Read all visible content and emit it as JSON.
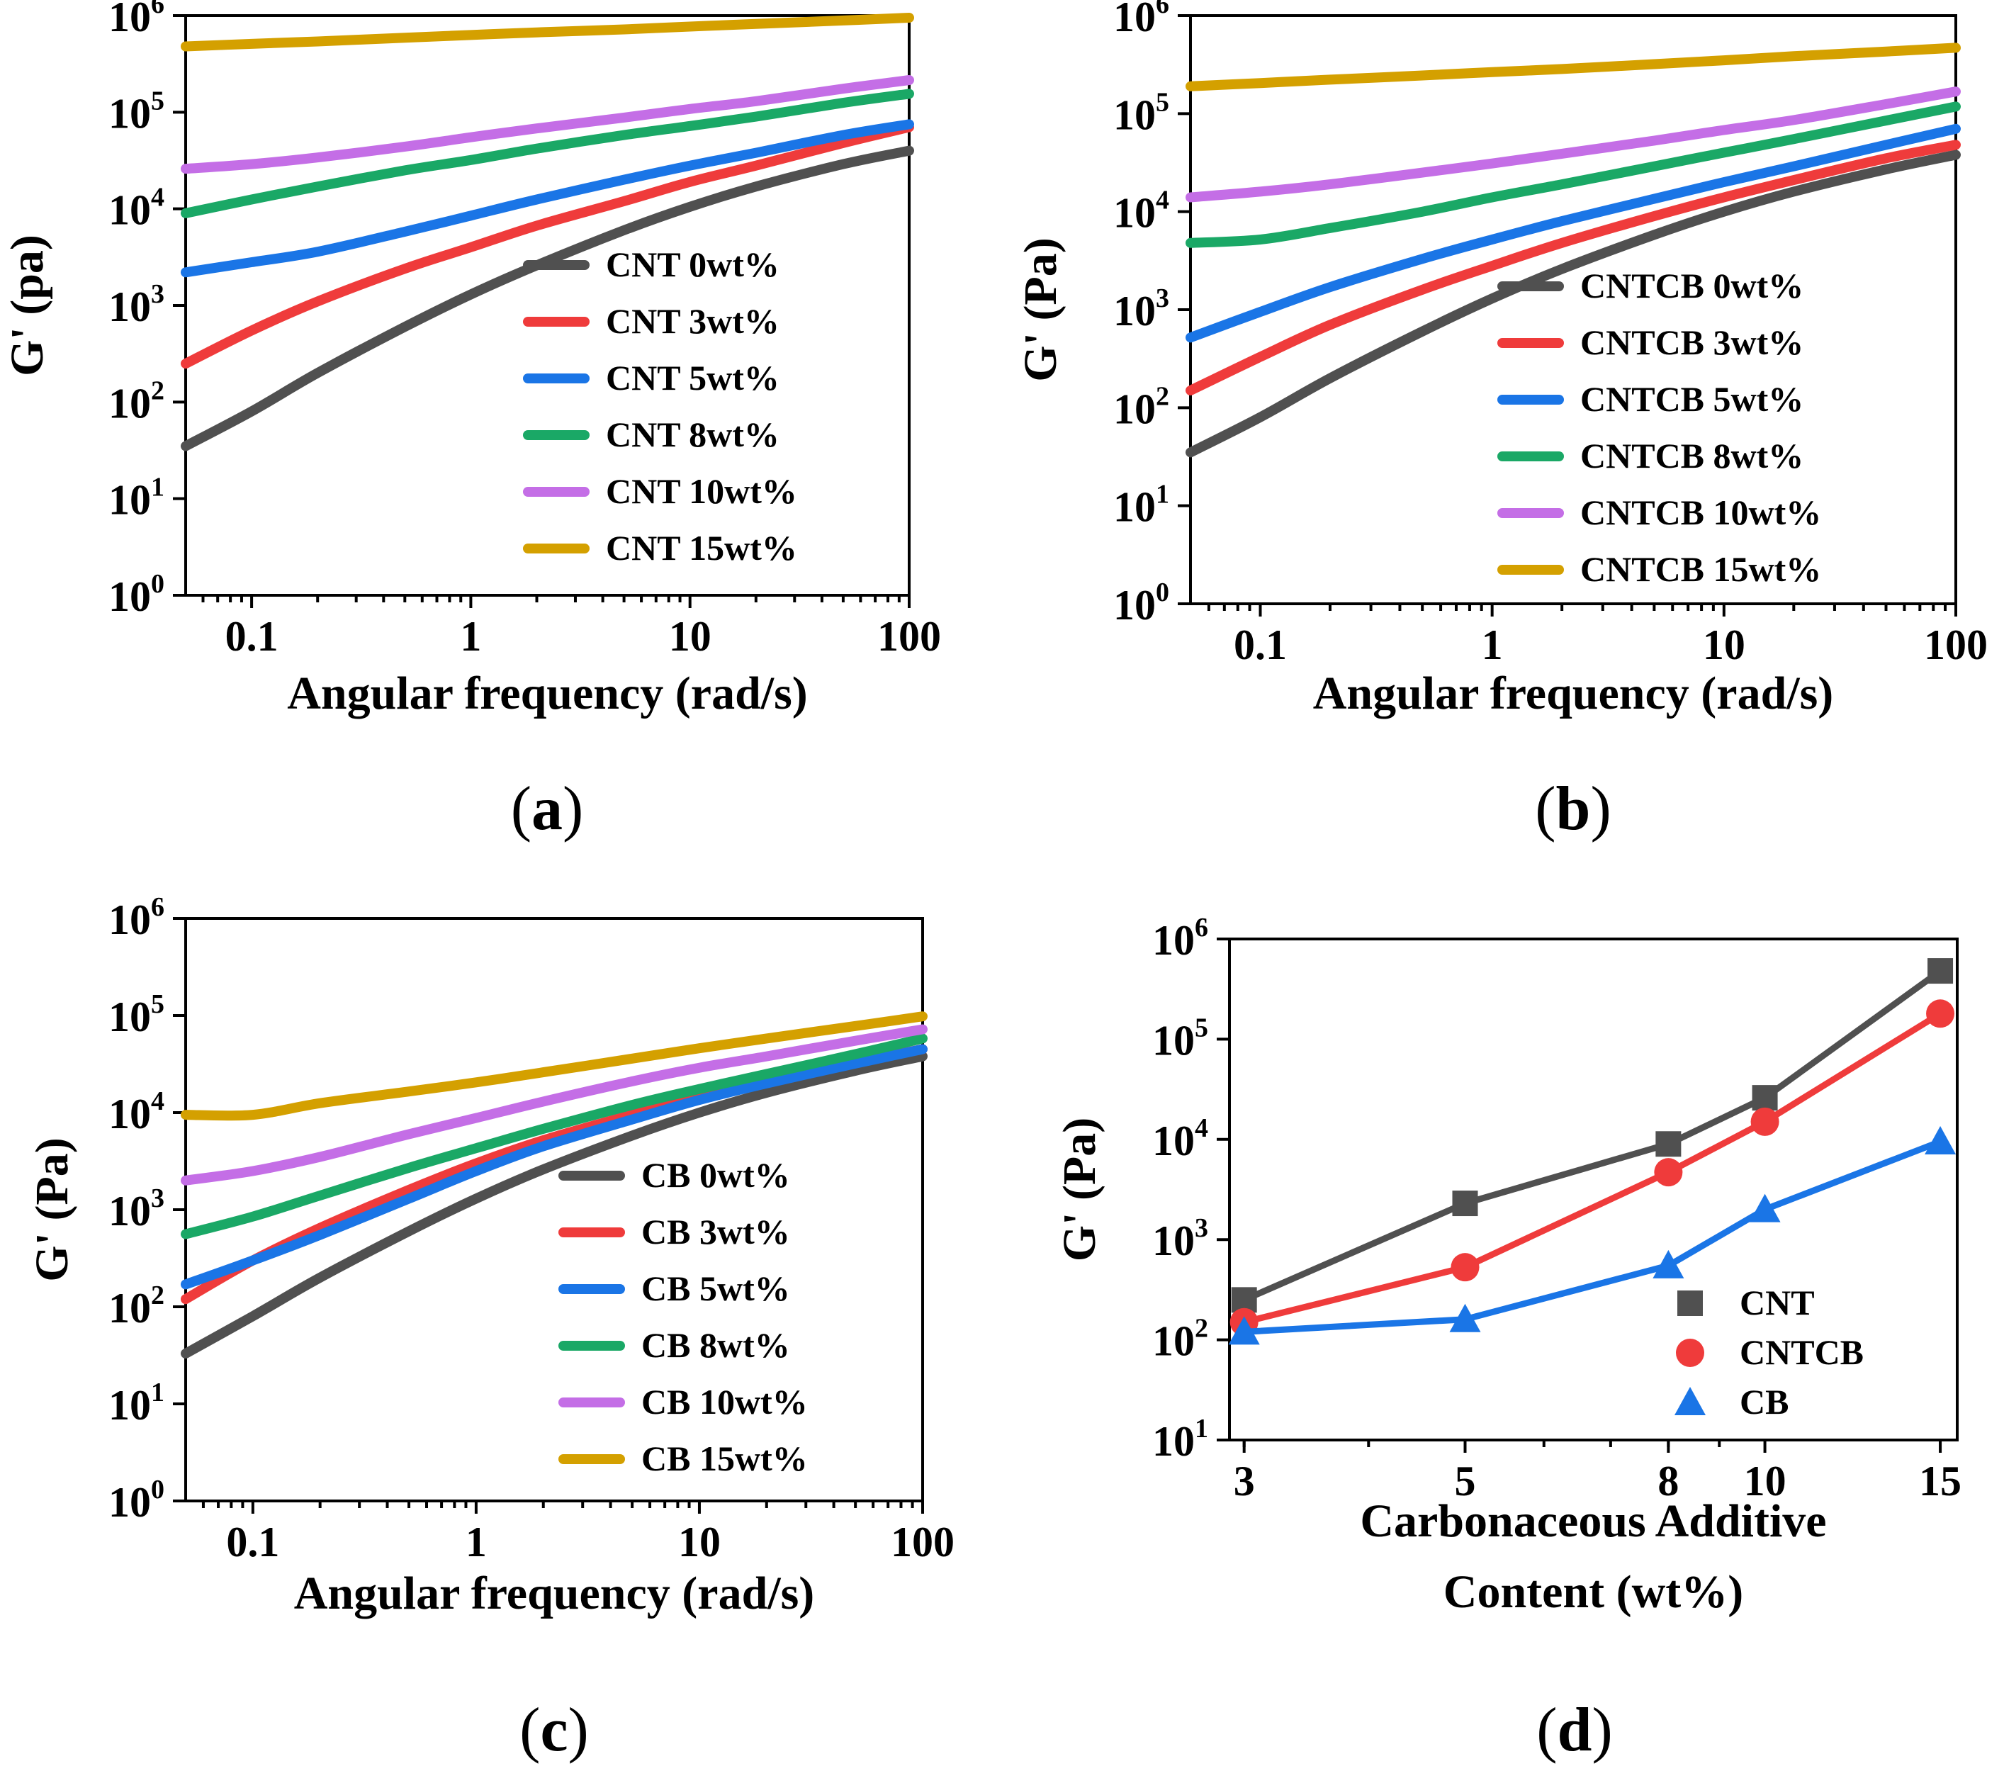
{
  "colors": {
    "0wt": "#505050",
    "3wt": "#ef3b3b",
    "5wt": "#1a75e6",
    "8wt": "#1aa866",
    "10wt": "#c46ee6",
    "15wt": "#d4a000",
    "CNT": "#505050",
    "CNTCB": "#ef3b3b",
    "CB": "#1a75e6"
  },
  "chart_data": [
    {
      "id": "a",
      "panel_label": "a",
      "type": "line",
      "xscale": "log",
      "yscale": "log",
      "xlim": [
        0.05,
        100
      ],
      "ylim": [
        1,
        1000000
      ],
      "xlabel": "Angular frequency (rad/s)",
      "ylabel": "G' (pa)",
      "x_ticks": [
        {
          "value": 0.1,
          "label": "0.1"
        },
        {
          "value": 1,
          "label": "1"
        },
        {
          "value": 10,
          "label": "10"
        },
        {
          "value": 100,
          "label": "100"
        }
      ],
      "y_ticks": [
        {
          "value": 1,
          "base": "10",
          "exp": "0"
        },
        {
          "value": 10,
          "base": "10",
          "exp": "1"
        },
        {
          "value": 100,
          "base": "10",
          "exp": "2"
        },
        {
          "value": 1000,
          "base": "10",
          "exp": "3"
        },
        {
          "value": 10000,
          "base": "10",
          "exp": "4"
        },
        {
          "value": 100000,
          "base": "10",
          "exp": "5"
        },
        {
          "value": 1000000,
          "base": "10",
          "exp": "6"
        }
      ],
      "legend_position": "lower-right",
      "series": [
        {
          "name": "CNT 0wt%",
          "color_key": "0wt",
          "x": [
            0.05,
            0.1,
            0.2,
            0.5,
            1,
            2,
            5,
            10,
            20,
            50,
            100
          ],
          "y": [
            35,
            80,
            200,
            600,
            1300,
            2600,
            6000,
            10500,
            17000,
            29000,
            40000
          ]
        },
        {
          "name": "CNT 3wt%",
          "color_key": "3wt",
          "x": [
            0.05,
            0.1,
            0.2,
            0.5,
            1,
            2,
            5,
            10,
            20,
            50,
            100
          ],
          "y": [
            250,
            550,
            1100,
            2400,
            4000,
            6700,
            12000,
            19000,
            28000,
            48000,
            70000
          ]
        },
        {
          "name": "CNT 5wt%",
          "color_key": "5wt",
          "x": [
            0.05,
            0.1,
            0.2,
            0.5,
            1,
            2,
            5,
            10,
            20,
            50,
            100
          ],
          "y": [
            2200,
            2800,
            3600,
            5800,
            8500,
            12500,
            20000,
            28000,
            38000,
            58000,
            75000
          ]
        },
        {
          "name": "CNT 8wt%",
          "color_key": "8wt",
          "x": [
            0.05,
            0.1,
            0.2,
            0.5,
            1,
            2,
            5,
            10,
            20,
            50,
            100
          ],
          "y": [
            9000,
            12500,
            17000,
            25000,
            32000,
            42000,
            58000,
            72000,
            90000,
            125000,
            155000
          ]
        },
        {
          "name": "CNT 10wt%",
          "color_key": "10wt",
          "x": [
            0.05,
            0.1,
            0.2,
            0.5,
            1,
            2,
            5,
            10,
            20,
            50,
            100
          ],
          "y": [
            26000,
            29000,
            34000,
            44000,
            55000,
            68000,
            88000,
            108000,
            130000,
            175000,
            215000
          ]
        },
        {
          "name": "CNT 15wt%",
          "color_key": "15wt",
          "x": [
            0.05,
            0.1,
            0.2,
            0.5,
            1,
            2,
            5,
            10,
            20,
            50,
            100
          ],
          "y": [
            480000,
            510000,
            540000,
            590000,
            630000,
            670000,
            720000,
            770000,
            820000,
            890000,
            950000
          ]
        }
      ]
    },
    {
      "id": "b",
      "panel_label": "b",
      "type": "line",
      "xscale": "log",
      "yscale": "log",
      "xlim": [
        0.05,
        100
      ],
      "ylim": [
        1,
        1000000
      ],
      "xlabel": "Angular frequency (rad/s)",
      "ylabel": "G' (Pa)",
      "x_ticks": [
        {
          "value": 0.1,
          "label": "0.1"
        },
        {
          "value": 1,
          "label": "1"
        },
        {
          "value": 10,
          "label": "10"
        },
        {
          "value": 100,
          "label": "100"
        }
      ],
      "y_ticks": [
        {
          "value": 1,
          "base": "10",
          "exp": "0"
        },
        {
          "value": 10,
          "base": "10",
          "exp": "1"
        },
        {
          "value": 100,
          "base": "10",
          "exp": "2"
        },
        {
          "value": 1000,
          "base": "10",
          "exp": "3"
        },
        {
          "value": 10000,
          "base": "10",
          "exp": "4"
        },
        {
          "value": 100000,
          "base": "10",
          "exp": "5"
        },
        {
          "value": 1000000,
          "base": "10",
          "exp": "6"
        }
      ],
      "legend_position": "lower-right",
      "series": [
        {
          "name": "CNTCB 0wt%",
          "color_key": "0wt",
          "x": [
            0.05,
            0.1,
            0.2,
            0.5,
            1,
            2,
            5,
            10,
            20,
            50,
            100
          ],
          "y": [
            35,
            80,
            200,
            600,
            1300,
            2600,
            5800,
            10000,
            16000,
            27000,
            38000
          ]
        },
        {
          "name": "CNTCB 3wt%",
          "color_key": "3wt",
          "x": [
            0.05,
            0.1,
            0.2,
            0.5,
            1,
            2,
            5,
            10,
            20,
            50,
            100
          ],
          "y": [
            150,
            330,
            700,
            1600,
            2800,
            4800,
            9000,
            14000,
            21000,
            35000,
            48000
          ]
        },
        {
          "name": "CNTCB 5wt%",
          "color_key": "5wt",
          "x": [
            0.05,
            0.1,
            0.2,
            0.5,
            1,
            2,
            5,
            10,
            20,
            50,
            100
          ],
          "y": [
            520,
            950,
            1700,
            3300,
            5200,
            8000,
            13500,
            20000,
            29000,
            48000,
            70000
          ]
        },
        {
          "name": "CNTCB 8wt%",
          "color_key": "8wt",
          "x": [
            0.05,
            0.1,
            0.2,
            0.5,
            1,
            2,
            5,
            10,
            20,
            50,
            100
          ],
          "y": [
            4800,
            5200,
            6800,
            10000,
            14000,
            19000,
            29000,
            40000,
            55000,
            85000,
            118000
          ]
        },
        {
          "name": "CNTCB 10wt%",
          "color_key": "10wt",
          "x": [
            0.05,
            0.1,
            0.2,
            0.5,
            1,
            2,
            5,
            10,
            20,
            50,
            100
          ],
          "y": [
            14000,
            16000,
            19000,
            25000,
            31000,
            39000,
            53000,
            68000,
            86000,
            125000,
            168000
          ]
        },
        {
          "name": "CNTCB 15wt%",
          "color_key": "15wt",
          "x": [
            0.05,
            0.1,
            0.2,
            0.5,
            1,
            2,
            5,
            10,
            20,
            50,
            100
          ],
          "y": [
            190000,
            205000,
            222000,
            245000,
            265000,
            285000,
            320000,
            350000,
            385000,
            430000,
            470000
          ]
        }
      ]
    },
    {
      "id": "c",
      "panel_label": "c",
      "type": "line",
      "xscale": "log",
      "yscale": "log",
      "xlim": [
        0.05,
        100
      ],
      "ylim": [
        1,
        1000000
      ],
      "xlabel": "Angular frequency (rad/s)",
      "ylabel": "G' (Pa)",
      "x_ticks": [
        {
          "value": 0.1,
          "label": "0.1"
        },
        {
          "value": 1,
          "label": "1"
        },
        {
          "value": 10,
          "label": "10"
        },
        {
          "value": 100,
          "label": "100"
        }
      ],
      "y_ticks": [
        {
          "value": 1,
          "base": "10",
          "exp": "0"
        },
        {
          "value": 10,
          "base": "10",
          "exp": "1"
        },
        {
          "value": 100,
          "base": "10",
          "exp": "2"
        },
        {
          "value": 1000,
          "base": "10",
          "exp": "3"
        },
        {
          "value": 10000,
          "base": "10",
          "exp": "4"
        },
        {
          "value": 100000,
          "base": "10",
          "exp": "5"
        },
        {
          "value": 1000000,
          "base": "10",
          "exp": "6"
        }
      ],
      "legend_position": "lower-right",
      "series": [
        {
          "name": "CB 0wt%",
          "color_key": "0wt",
          "x": [
            0.05,
            0.1,
            0.2,
            0.5,
            1,
            2,
            5,
            10,
            20,
            50,
            100
          ],
          "y": [
            33,
            80,
            200,
            600,
            1300,
            2600,
            5800,
            10000,
            16000,
            27000,
            38000
          ]
        },
        {
          "name": "CB 3wt%",
          "color_key": "3wt",
          "x": [
            0.05,
            0.1,
            0.2,
            0.5,
            1,
            2,
            5,
            10,
            20,
            50,
            100
          ],
          "y": [
            120,
            300,
            650,
            1600,
            3000,
            5200,
            9500,
            14500,
            21000,
            33000,
            45000
          ]
        },
        {
          "name": "CB 5wt%",
          "color_key": "5wt",
          "x": [
            0.05,
            0.1,
            0.2,
            0.5,
            1,
            2,
            5,
            10,
            20,
            50,
            100
          ],
          "y": [
            170,
            300,
            550,
            1300,
            2500,
            4500,
            8500,
            13500,
            20000,
            32000,
            45000
          ]
        },
        {
          "name": "CB 8wt%",
          "color_key": "8wt",
          "x": [
            0.05,
            0.1,
            0.2,
            0.5,
            1,
            2,
            5,
            10,
            20,
            50,
            100
          ],
          "y": [
            560,
            850,
            1400,
            2700,
            4300,
            6800,
            12000,
            17500,
            25000,
            40000,
            58000
          ]
        },
        {
          "name": "CB 10wt%",
          "color_key": "10wt",
          "x": [
            0.05,
            0.1,
            0.2,
            0.5,
            1,
            2,
            5,
            10,
            20,
            50,
            100
          ],
          "y": [
            2000,
            2500,
            3500,
            6000,
            8800,
            13000,
            21000,
            29000,
            38000,
            55000,
            72000
          ]
        },
        {
          "name": "CB 15wt%",
          "color_key": "15wt",
          "x": [
            0.05,
            0.1,
            0.2,
            0.5,
            1,
            2,
            5,
            10,
            20,
            50,
            100
          ],
          "y": [
            9500,
            9500,
            12500,
            16500,
            20500,
            26000,
            36000,
            46000,
            58000,
            78000,
            98000
          ]
        }
      ]
    },
    {
      "id": "d",
      "panel_label": "d",
      "type": "scatter",
      "xscale": "log",
      "yscale": "log",
      "xlim": [
        2.9,
        15.6
      ],
      "ylim": [
        10,
        1000000
      ],
      "xlabel_lines": [
        "Carbonaceous Additive",
        "Content (wt%)"
      ],
      "ylabel": "G' (Pa)",
      "x_ticks": [
        {
          "value": 3,
          "label": "3"
        },
        {
          "value": 5,
          "label": "5"
        },
        {
          "value": 8,
          "label": "8"
        },
        {
          "value": 10,
          "label": "10"
        },
        {
          "value": 15,
          "label": "15"
        }
      ],
      "y_ticks": [
        {
          "value": 10,
          "base": "10",
          "exp": "1"
        },
        {
          "value": 100,
          "base": "10",
          "exp": "2"
        },
        {
          "value": 1000,
          "base": "10",
          "exp": "3"
        },
        {
          "value": 10000,
          "base": "10",
          "exp": "4"
        },
        {
          "value": 100000,
          "base": "10",
          "exp": "5"
        },
        {
          "value": 1000000,
          "base": "10",
          "exp": "6"
        }
      ],
      "legend_position": "lower-right",
      "series": [
        {
          "name": "CNT",
          "color_key": "CNT",
          "marker": "square",
          "x": [
            3,
            5,
            8,
            10,
            15
          ],
          "y": [
            250,
            2300,
            9000,
            26000,
            480000
          ]
        },
        {
          "name": "CNTCB",
          "color_key": "CNTCB",
          "marker": "circle",
          "x": [
            3,
            5,
            8,
            10,
            15
          ],
          "y": [
            150,
            530,
            4700,
            15000,
            180000
          ]
        },
        {
          "name": "CB",
          "color_key": "CB",
          "marker": "triangle",
          "x": [
            3,
            5,
            8,
            10,
            15
          ],
          "y": [
            120,
            160,
            550,
            2000,
            9500
          ]
        }
      ]
    }
  ]
}
